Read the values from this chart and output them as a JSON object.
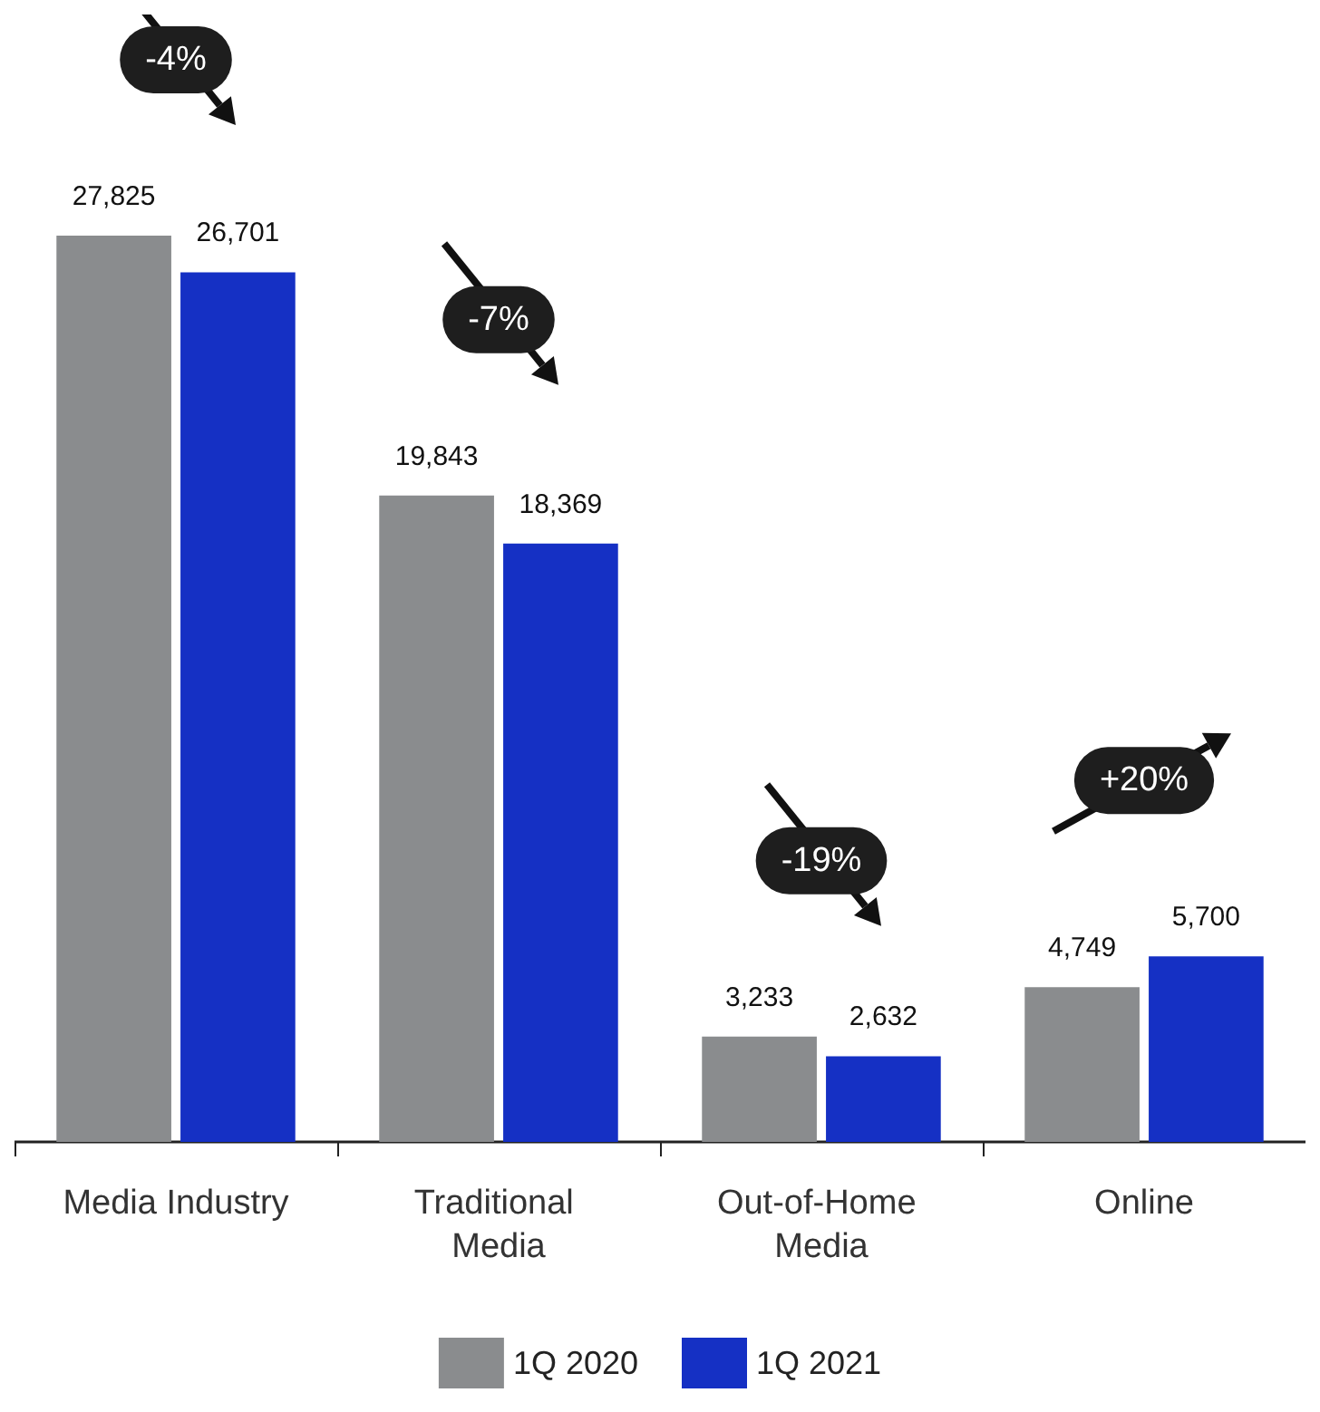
{
  "chart_data": {
    "type": "bar",
    "categories": [
      "Media Industry",
      "Traditional Media",
      "Out-of-Home Media",
      "Online"
    ],
    "series": [
      {
        "name": "1Q 2020",
        "color": "#8a8c8e",
        "values": [
          27825,
          19843,
          3233,
          4749
        ],
        "value_labels": [
          "27,825",
          "19,843",
          "3,233",
          "4,749"
        ]
      },
      {
        "name": "1Q 2021",
        "color": "#1530c4",
        "values": [
          26701,
          18369,
          2632,
          5700
        ],
        "value_labels": [
          "26,701",
          "18,369",
          "2,632",
          "5,700"
        ]
      }
    ],
    "annotations": [
      "-4%",
      "-7%",
      "-19%",
      "+20%"
    ],
    "legend": "bottom",
    "grid": false,
    "tick_labels": "x"
  }
}
